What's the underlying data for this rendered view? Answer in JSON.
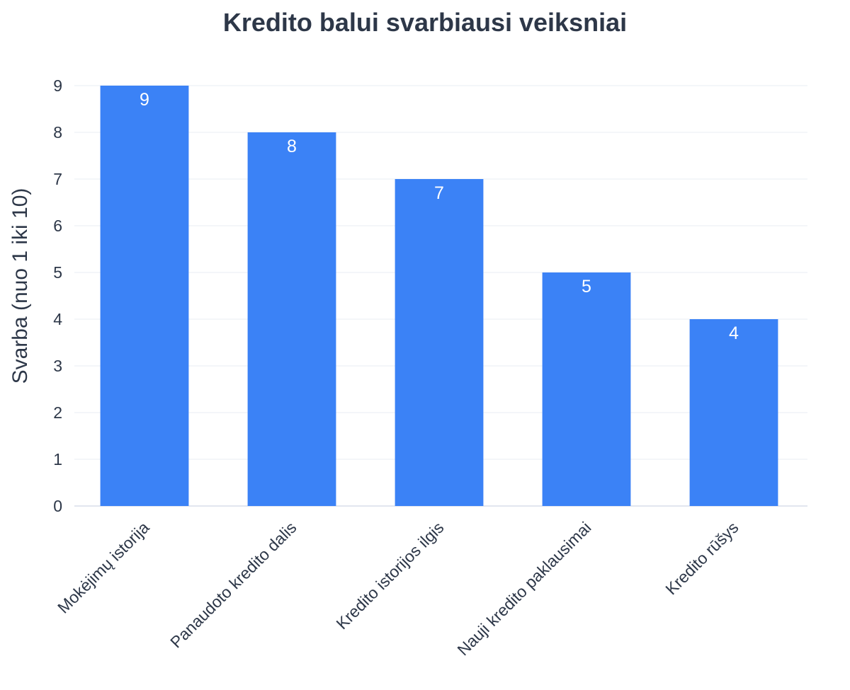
{
  "chart_data": {
    "type": "bar",
    "title": "Kredito balui svarbiausi veiksniai",
    "xlabel": "",
    "ylabel": "Svarba (nuo 1 iki 10)",
    "categories": [
      "Mokėjimų istorija",
      "Panaudoto kredito dalis",
      "Kredito istorijos ilgis",
      "Nauji kredito paklausimai",
      "Kredito rūšys"
    ],
    "values": [
      9,
      8,
      7,
      5,
      4
    ],
    "ylim": [
      0,
      9
    ],
    "yticks": [
      0,
      1,
      2,
      3,
      4,
      5,
      6,
      7,
      8,
      9
    ],
    "grid": true,
    "legend": "none",
    "data_labels": "inside-top",
    "colors": {
      "bar": "#3b82f6",
      "text": "#2d3748",
      "grid": "#e9edf3",
      "data_label": "#ffffff"
    }
  }
}
